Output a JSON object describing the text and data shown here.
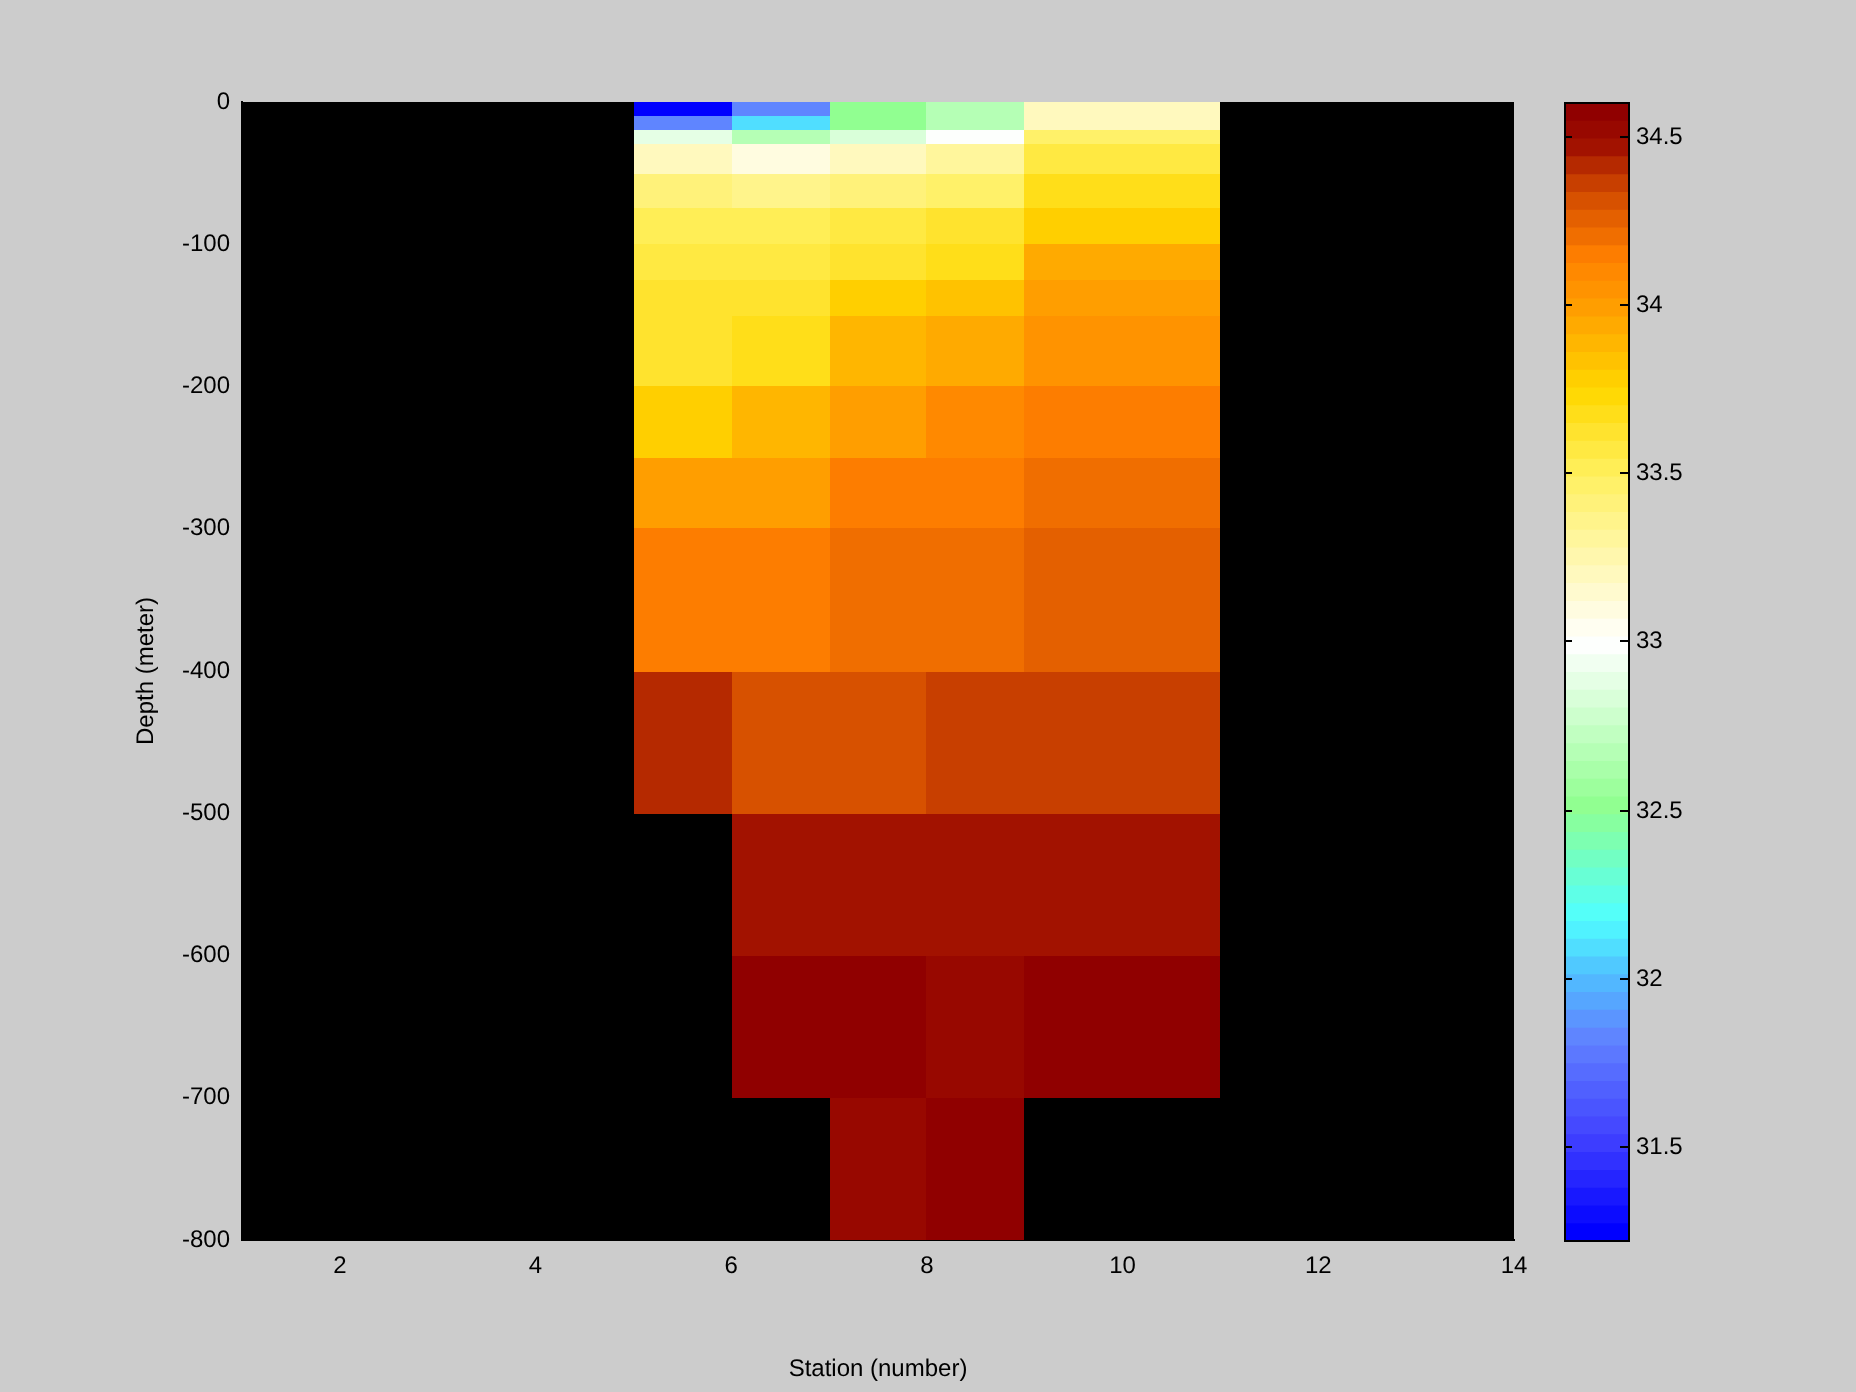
{
  "chart_data": {
    "type": "heatmap",
    "xlabel": "Station (number)",
    "ylabel": "Depth (meter)",
    "cells": [
      [
        null,
        null,
        null,
        null,
        31.25,
        31.85,
        32.5,
        32.65,
        33.2,
        33.2,
        null,
        null,
        null
      ],
      [
        null,
        null,
        null,
        null,
        31.25,
        31.85,
        32.5,
        32.65,
        33.2,
        33.2,
        null,
        null,
        null
      ],
      [
        null,
        null,
        null,
        null,
        31.85,
        32.1,
        32.5,
        32.65,
        33.2,
        33.2,
        null,
        null,
        null
      ],
      [
        null,
        null,
        null,
        null,
        31.85,
        32.1,
        32.5,
        32.65,
        33.2,
        33.2,
        null,
        null,
        null
      ],
      [
        null,
        null,
        null,
        null,
        32.9,
        32.65,
        32.85,
        33.0,
        33.45,
        33.45,
        null,
        null,
        null
      ],
      [
        null,
        null,
        null,
        null,
        32.9,
        32.65,
        32.85,
        33.0,
        33.45,
        33.45,
        null,
        null,
        null
      ],
      [
        null,
        null,
        null,
        null,
        33.2,
        33.1,
        33.2,
        33.3,
        33.55,
        33.55,
        null,
        null,
        null
      ],
      [
        null,
        null,
        null,
        null,
        33.2,
        33.1,
        33.2,
        33.3,
        33.55,
        33.55,
        null,
        null,
        null
      ],
      [
        null,
        null,
        null,
        null,
        33.2,
        33.1,
        33.2,
        33.3,
        33.55,
        33.55,
        null,
        null,
        null
      ],
      [
        null,
        null,
        null,
        null,
        33.2,
        33.1,
        33.2,
        33.3,
        33.55,
        33.55,
        null,
        null,
        null
      ],
      [
        null,
        null,
        null,
        null,
        33.4,
        33.35,
        33.4,
        33.45,
        33.7,
        33.7,
        null,
        null,
        null
      ],
      [
        null,
        null,
        null,
        null,
        33.4,
        33.35,
        33.4,
        33.45,
        33.7,
        33.7,
        null,
        null,
        null
      ],
      [
        null,
        null,
        null,
        null,
        33.4,
        33.35,
        33.4,
        33.45,
        33.7,
        33.7,
        null,
        null,
        null
      ],
      [
        null,
        null,
        null,
        null,
        33.4,
        33.35,
        33.4,
        33.45,
        33.7,
        33.7,
        null,
        null,
        null
      ],
      [
        null,
        null,
        null,
        null,
        33.4,
        33.35,
        33.4,
        33.45,
        33.7,
        33.7,
        null,
        null,
        null
      ],
      [
        null,
        null,
        null,
        null,
        33.5,
        33.5,
        33.55,
        33.6,
        33.8,
        33.8,
        null,
        null,
        null
      ],
      [
        null,
        null,
        null,
        null,
        33.5,
        33.5,
        33.55,
        33.6,
        33.8,
        33.8,
        null,
        null,
        null
      ],
      [
        null,
        null,
        null,
        null,
        33.5,
        33.5,
        33.55,
        33.6,
        33.8,
        33.8,
        null,
        null,
        null
      ],
      [
        null,
        null,
        null,
        null,
        33.5,
        33.5,
        33.55,
        33.6,
        33.8,
        33.8,
        null,
        null,
        null
      ],
      [
        null,
        null,
        null,
        null,
        33.5,
        33.5,
        33.55,
        33.6,
        33.8,
        33.8,
        null,
        null,
        null
      ],
      [
        null,
        null,
        null,
        null,
        33.55,
        33.55,
        33.6,
        33.7,
        33.95,
        33.95,
        null,
        null,
        null
      ],
      [
        null,
        null,
        null,
        null,
        33.55,
        33.55,
        33.6,
        33.7,
        33.95,
        33.95,
        null,
        null,
        null
      ],
      [
        null,
        null,
        null,
        null,
        33.55,
        33.55,
        33.6,
        33.7,
        33.95,
        33.95,
        null,
        null,
        null
      ],
      [
        null,
        null,
        null,
        null,
        33.55,
        33.55,
        33.6,
        33.7,
        33.95,
        33.95,
        null,
        null,
        null
      ],
      [
        null,
        null,
        null,
        null,
        33.55,
        33.55,
        33.6,
        33.7,
        33.95,
        33.95,
        null,
        null,
        null
      ],
      [
        null,
        null,
        null,
        null,
        33.6,
        33.6,
        33.8,
        33.85,
        34.0,
        34.0,
        null,
        null,
        null
      ],
      [
        null,
        null,
        null,
        null,
        33.6,
        33.6,
        33.8,
        33.85,
        34.0,
        34.0,
        null,
        null,
        null
      ],
      [
        null,
        null,
        null,
        null,
        33.6,
        33.6,
        33.8,
        33.85,
        34.0,
        34.0,
        null,
        null,
        null
      ],
      [
        null,
        null,
        null,
        null,
        33.6,
        33.6,
        33.8,
        33.85,
        34.0,
        34.0,
        null,
        null,
        null
      ],
      [
        null,
        null,
        null,
        null,
        33.6,
        33.6,
        33.8,
        33.85,
        34.0,
        34.0,
        null,
        null,
        null
      ],
      [
        null,
        null,
        null,
        null,
        33.6,
        33.7,
        33.9,
        33.95,
        34.05,
        34.05,
        null,
        null,
        null
      ],
      [
        null,
        null,
        null,
        null,
        33.6,
        33.7,
        33.9,
        33.95,
        34.05,
        34.05,
        null,
        null,
        null
      ],
      [
        null,
        null,
        null,
        null,
        33.6,
        33.7,
        33.9,
        33.95,
        34.05,
        34.05,
        null,
        null,
        null
      ],
      [
        null,
        null,
        null,
        null,
        33.6,
        33.7,
        33.9,
        33.95,
        34.05,
        34.05,
        null,
        null,
        null
      ],
      [
        null,
        null,
        null,
        null,
        33.6,
        33.7,
        33.9,
        33.95,
        34.05,
        34.05,
        null,
        null,
        null
      ],
      [
        null,
        null,
        null,
        null,
        33.6,
        33.7,
        33.9,
        33.95,
        34.05,
        34.05,
        null,
        null,
        null
      ],
      [
        null,
        null,
        null,
        null,
        33.6,
        33.7,
        33.9,
        33.95,
        34.05,
        34.05,
        null,
        null,
        null
      ],
      [
        null,
        null,
        null,
        null,
        33.6,
        33.7,
        33.9,
        33.95,
        34.05,
        34.05,
        null,
        null,
        null
      ],
      [
        null,
        null,
        null,
        null,
        33.6,
        33.7,
        33.9,
        33.95,
        34.05,
        34.05,
        null,
        null,
        null
      ],
      [
        null,
        null,
        null,
        null,
        33.6,
        33.7,
        33.9,
        33.95,
        34.05,
        34.05,
        null,
        null,
        null
      ],
      [
        null,
        null,
        null,
        null,
        33.8,
        33.9,
        34.0,
        34.1,
        34.15,
        34.15,
        null,
        null,
        null
      ],
      [
        null,
        null,
        null,
        null,
        33.8,
        33.9,
        34.0,
        34.1,
        34.15,
        34.15,
        null,
        null,
        null
      ],
      [
        null,
        null,
        null,
        null,
        33.8,
        33.9,
        34.0,
        34.1,
        34.15,
        34.15,
        null,
        null,
        null
      ],
      [
        null,
        null,
        null,
        null,
        33.8,
        33.9,
        34.0,
        34.1,
        34.15,
        34.15,
        null,
        null,
        null
      ],
      [
        null,
        null,
        null,
        null,
        33.8,
        33.9,
        34.0,
        34.1,
        34.15,
        34.15,
        null,
        null,
        null
      ],
      [
        null,
        null,
        null,
        null,
        33.8,
        33.9,
        34.0,
        34.1,
        34.15,
        34.15,
        null,
        null,
        null
      ],
      [
        null,
        null,
        null,
        null,
        33.8,
        33.9,
        34.0,
        34.1,
        34.15,
        34.15,
        null,
        null,
        null
      ],
      [
        null,
        null,
        null,
        null,
        33.8,
        33.9,
        34.0,
        34.1,
        34.15,
        34.15,
        null,
        null,
        null
      ],
      [
        null,
        null,
        null,
        null,
        33.8,
        33.9,
        34.0,
        34.1,
        34.15,
        34.15,
        null,
        null,
        null
      ],
      [
        null,
        null,
        null,
        null,
        33.8,
        33.9,
        34.0,
        34.1,
        34.15,
        34.15,
        null,
        null,
        null
      ],
      [
        null,
        null,
        null,
        null,
        34.0,
        34.0,
        34.15,
        34.15,
        34.2,
        34.2,
        null,
        null,
        null
      ],
      [
        null,
        null,
        null,
        null,
        34.0,
        34.0,
        34.15,
        34.15,
        34.2,
        34.2,
        null,
        null,
        null
      ],
      [
        null,
        null,
        null,
        null,
        34.0,
        34.0,
        34.15,
        34.15,
        34.2,
        34.2,
        null,
        null,
        null
      ],
      [
        null,
        null,
        null,
        null,
        34.0,
        34.0,
        34.15,
        34.15,
        34.2,
        34.2,
        null,
        null,
        null
      ],
      [
        null,
        null,
        null,
        null,
        34.0,
        34.0,
        34.15,
        34.15,
        34.2,
        34.2,
        null,
        null,
        null
      ],
      [
        null,
        null,
        null,
        null,
        34.0,
        34.0,
        34.15,
        34.15,
        34.2,
        34.2,
        null,
        null,
        null
      ],
      [
        null,
        null,
        null,
        null,
        34.0,
        34.0,
        34.15,
        34.15,
        34.2,
        34.2,
        null,
        null,
        null
      ],
      [
        null,
        null,
        null,
        null,
        34.0,
        34.0,
        34.15,
        34.15,
        34.2,
        34.2,
        null,
        null,
        null
      ],
      [
        null,
        null,
        null,
        null,
        34.0,
        34.0,
        34.15,
        34.15,
        34.2,
        34.2,
        null,
        null,
        null
      ],
      [
        null,
        null,
        null,
        null,
        34.0,
        34.0,
        34.15,
        34.15,
        34.2,
        34.2,
        null,
        null,
        null
      ],
      [
        null,
        null,
        null,
        null,
        34.15,
        34.15,
        34.2,
        34.2,
        34.25,
        34.25,
        null,
        null,
        null
      ],
      [
        null,
        null,
        null,
        null,
        34.15,
        34.15,
        34.2,
        34.2,
        34.25,
        34.25,
        null,
        null,
        null
      ],
      [
        null,
        null,
        null,
        null,
        34.15,
        34.15,
        34.2,
        34.2,
        34.25,
        34.25,
        null,
        null,
        null
      ],
      [
        null,
        null,
        null,
        null,
        34.15,
        34.15,
        34.2,
        34.2,
        34.25,
        34.25,
        null,
        null,
        null
      ],
      [
        null,
        null,
        null,
        null,
        34.15,
        34.15,
        34.2,
        34.2,
        34.25,
        34.25,
        null,
        null,
        null
      ],
      [
        null,
        null,
        null,
        null,
        34.15,
        34.15,
        34.2,
        34.2,
        34.25,
        34.25,
        null,
        null,
        null
      ],
      [
        null,
        null,
        null,
        null,
        34.15,
        34.15,
        34.2,
        34.2,
        34.25,
        34.25,
        null,
        null,
        null
      ],
      [
        null,
        null,
        null,
        null,
        34.15,
        34.15,
        34.2,
        34.2,
        34.25,
        34.25,
        null,
        null,
        null
      ],
      [
        null,
        null,
        null,
        null,
        34.15,
        34.15,
        34.2,
        34.2,
        34.25,
        34.25,
        null,
        null,
        null
      ],
      [
        null,
        null,
        null,
        null,
        34.15,
        34.15,
        34.2,
        34.2,
        34.25,
        34.25,
        null,
        null,
        null
      ],
      [
        null,
        null,
        null,
        null,
        34.15,
        34.15,
        34.2,
        34.2,
        34.25,
        34.25,
        null,
        null,
        null
      ],
      [
        null,
        null,
        null,
        null,
        34.15,
        34.15,
        34.2,
        34.2,
        34.25,
        34.25,
        null,
        null,
        null
      ],
      [
        null,
        null,
        null,
        null,
        34.15,
        34.15,
        34.2,
        34.2,
        34.25,
        34.25,
        null,
        null,
        null
      ],
      [
        null,
        null,
        null,
        null,
        34.15,
        34.15,
        34.2,
        34.2,
        34.25,
        34.25,
        null,
        null,
        null
      ],
      [
        null,
        null,
        null,
        null,
        34.15,
        34.15,
        34.2,
        34.2,
        34.25,
        34.25,
        null,
        null,
        null
      ],
      [
        null,
        null,
        null,
        null,
        34.15,
        34.15,
        34.2,
        34.2,
        34.25,
        34.25,
        null,
        null,
        null
      ],
      [
        null,
        null,
        null,
        null,
        34.15,
        34.15,
        34.2,
        34.2,
        34.25,
        34.25,
        null,
        null,
        null
      ],
      [
        null,
        null,
        null,
        null,
        34.15,
        34.15,
        34.2,
        34.2,
        34.25,
        34.25,
        null,
        null,
        null
      ],
      [
        null,
        null,
        null,
        null,
        34.15,
        34.15,
        34.2,
        34.2,
        34.25,
        34.25,
        null,
        null,
        null
      ],
      [
        null,
        null,
        null,
        null,
        34.15,
        34.15,
        34.2,
        34.2,
        34.25,
        34.25,
        null,
        null,
        null
      ],
      [
        null,
        null,
        null,
        null,
        34.4,
        34.3,
        34.3,
        34.35,
        34.35,
        34.35,
        null,
        null,
        null
      ],
      [
        null,
        null,
        null,
        null,
        34.4,
        34.3,
        34.3,
        34.35,
        34.35,
        34.35,
        null,
        null,
        null
      ],
      [
        null,
        null,
        null,
        null,
        34.4,
        34.3,
        34.3,
        34.35,
        34.35,
        34.35,
        null,
        null,
        null
      ],
      [
        null,
        null,
        null,
        null,
        34.4,
        34.3,
        34.3,
        34.35,
        34.35,
        34.35,
        null,
        null,
        null
      ],
      [
        null,
        null,
        null,
        null,
        34.4,
        34.3,
        34.3,
        34.35,
        34.35,
        34.35,
        null,
        null,
        null
      ],
      [
        null,
        null,
        null,
        null,
        34.4,
        34.3,
        34.3,
        34.35,
        34.35,
        34.35,
        null,
        null,
        null
      ],
      [
        null,
        null,
        null,
        null,
        34.4,
        34.3,
        34.3,
        34.35,
        34.35,
        34.35,
        null,
        null,
        null
      ],
      [
        null,
        null,
        null,
        null,
        34.4,
        34.3,
        34.3,
        34.35,
        34.35,
        34.35,
        null,
        null,
        null
      ],
      [
        null,
        null,
        null,
        null,
        34.4,
        34.3,
        34.3,
        34.35,
        34.35,
        34.35,
        null,
        null,
        null
      ],
      [
        null,
        null,
        null,
        null,
        34.4,
        34.3,
        34.3,
        34.35,
        34.35,
        34.35,
        null,
        null,
        null
      ],
      [
        null,
        null,
        null,
        null,
        34.4,
        34.3,
        34.3,
        34.35,
        34.35,
        34.35,
        null,
        null,
        null
      ],
      [
        null,
        null,
        null,
        null,
        34.4,
        34.3,
        34.3,
        34.35,
        34.35,
        34.35,
        null,
        null,
        null
      ],
      [
        null,
        null,
        null,
        null,
        34.4,
        34.3,
        34.3,
        34.35,
        34.35,
        34.35,
        null,
        null,
        null
      ],
      [
        null,
        null,
        null,
        null,
        34.4,
        34.3,
        34.3,
        34.35,
        34.35,
        34.35,
        null,
        null,
        null
      ],
      [
        null,
        null,
        null,
        null,
        34.4,
        34.3,
        34.3,
        34.35,
        34.35,
        34.35,
        null,
        null,
        null
      ],
      [
        null,
        null,
        null,
        null,
        34.4,
        34.3,
        34.3,
        34.35,
        34.35,
        34.35,
        null,
        null,
        null
      ],
      [
        null,
        null,
        null,
        null,
        34.4,
        34.3,
        34.3,
        34.35,
        34.35,
        34.35,
        null,
        null,
        null
      ],
      [
        null,
        null,
        null,
        null,
        34.4,
        34.3,
        34.3,
        34.35,
        34.35,
        34.35,
        null,
        null,
        null
      ],
      [
        null,
        null,
        null,
        null,
        34.4,
        34.3,
        34.3,
        34.35,
        34.35,
        34.35,
        null,
        null,
        null
      ],
      [
        null,
        null,
        null,
        null,
        34.4,
        34.3,
        34.3,
        34.35,
        34.35,
        34.35,
        null,
        null,
        null
      ],
      [
        null,
        null,
        null,
        null,
        null,
        34.45,
        34.45,
        34.45,
        34.45,
        34.45,
        null,
        null,
        null
      ],
      [
        null,
        null,
        null,
        null,
        null,
        34.45,
        34.45,
        34.45,
        34.45,
        34.45,
        null,
        null,
        null
      ],
      [
        null,
        null,
        null,
        null,
        null,
        34.45,
        34.45,
        34.45,
        34.45,
        34.45,
        null,
        null,
        null
      ],
      [
        null,
        null,
        null,
        null,
        null,
        34.45,
        34.45,
        34.45,
        34.45,
        34.45,
        null,
        null,
        null
      ],
      [
        null,
        null,
        null,
        null,
        null,
        34.45,
        34.45,
        34.45,
        34.45,
        34.45,
        null,
        null,
        null
      ],
      [
        null,
        null,
        null,
        null,
        null,
        34.45,
        34.45,
        34.45,
        34.45,
        34.45,
        null,
        null,
        null
      ],
      [
        null,
        null,
        null,
        null,
        null,
        34.45,
        34.45,
        34.45,
        34.45,
        34.45,
        null,
        null,
        null
      ],
      [
        null,
        null,
        null,
        null,
        null,
        34.45,
        34.45,
        34.45,
        34.45,
        34.45,
        null,
        null,
        null
      ],
      [
        null,
        null,
        null,
        null,
        null,
        34.45,
        34.45,
        34.45,
        34.45,
        34.45,
        null,
        null,
        null
      ],
      [
        null,
        null,
        null,
        null,
        null,
        34.45,
        34.45,
        34.45,
        34.45,
        34.45,
        null,
        null,
        null
      ],
      [
        null,
        null,
        null,
        null,
        null,
        34.45,
        34.45,
        34.45,
        34.45,
        34.45,
        null,
        null,
        null
      ],
      [
        null,
        null,
        null,
        null,
        null,
        34.45,
        34.45,
        34.45,
        34.45,
        34.45,
        null,
        null,
        null
      ],
      [
        null,
        null,
        null,
        null,
        null,
        34.45,
        34.45,
        34.45,
        34.45,
        34.45,
        null,
        null,
        null
      ],
      [
        null,
        null,
        null,
        null,
        null,
        34.45,
        34.45,
        34.45,
        34.45,
        34.45,
        null,
        null,
        null
      ],
      [
        null,
        null,
        null,
        null,
        null,
        34.45,
        34.45,
        34.45,
        34.45,
        34.45,
        null,
        null,
        null
      ],
      [
        null,
        null,
        null,
        null,
        null,
        34.45,
        34.45,
        34.45,
        34.45,
        34.45,
        null,
        null,
        null
      ],
      [
        null,
        null,
        null,
        null,
        null,
        34.45,
        34.45,
        34.45,
        34.45,
        34.45,
        null,
        null,
        null
      ],
      [
        null,
        null,
        null,
        null,
        null,
        34.45,
        34.45,
        34.45,
        34.45,
        34.45,
        null,
        null,
        null
      ],
      [
        null,
        null,
        null,
        null,
        null,
        34.45,
        34.45,
        34.45,
        34.45,
        34.45,
        null,
        null,
        null
      ],
      [
        null,
        null,
        null,
        null,
        null,
        34.45,
        34.45,
        34.45,
        34.45,
        34.45,
        null,
        null,
        null
      ],
      [
        null,
        null,
        null,
        null,
        null,
        34.55,
        34.55,
        34.5,
        34.55,
        34.55,
        null,
        null,
        null
      ],
      [
        null,
        null,
        null,
        null,
        null,
        34.55,
        34.55,
        34.5,
        34.55,
        34.55,
        null,
        null,
        null
      ],
      [
        null,
        null,
        null,
        null,
        null,
        34.55,
        34.55,
        34.5,
        34.55,
        34.55,
        null,
        null,
        null
      ],
      [
        null,
        null,
        null,
        null,
        null,
        34.55,
        34.55,
        34.5,
        34.55,
        34.55,
        null,
        null,
        null
      ],
      [
        null,
        null,
        null,
        null,
        null,
        34.55,
        34.55,
        34.5,
        34.55,
        34.55,
        null,
        null,
        null
      ],
      [
        null,
        null,
        null,
        null,
        null,
        34.55,
        34.55,
        34.5,
        34.55,
        34.55,
        null,
        null,
        null
      ],
      [
        null,
        null,
        null,
        null,
        null,
        34.55,
        34.55,
        34.5,
        34.55,
        34.55,
        null,
        null,
        null
      ],
      [
        null,
        null,
        null,
        null,
        null,
        34.55,
        34.55,
        34.5,
        34.55,
        34.55,
        null,
        null,
        null
      ],
      [
        null,
        null,
        null,
        null,
        null,
        34.55,
        34.55,
        34.5,
        34.55,
        34.55,
        null,
        null,
        null
      ],
      [
        null,
        null,
        null,
        null,
        null,
        34.55,
        34.55,
        34.5,
        34.55,
        34.55,
        null,
        null,
        null
      ],
      [
        null,
        null,
        null,
        null,
        null,
        34.55,
        34.55,
        34.5,
        34.55,
        34.55,
        null,
        null,
        null
      ],
      [
        null,
        null,
        null,
        null,
        null,
        34.55,
        34.55,
        34.5,
        34.55,
        34.55,
        null,
        null,
        null
      ],
      [
        null,
        null,
        null,
        null,
        null,
        34.55,
        34.55,
        34.5,
        34.55,
        34.55,
        null,
        null,
        null
      ],
      [
        null,
        null,
        null,
        null,
        null,
        34.55,
        34.55,
        34.5,
        34.55,
        34.55,
        null,
        null,
        null
      ],
      [
        null,
        null,
        null,
        null,
        null,
        34.55,
        34.55,
        34.5,
        34.55,
        34.55,
        null,
        null,
        null
      ],
      [
        null,
        null,
        null,
        null,
        null,
        34.55,
        34.55,
        34.5,
        34.55,
        34.55,
        null,
        null,
        null
      ],
      [
        null,
        null,
        null,
        null,
        null,
        34.55,
        34.55,
        34.5,
        34.55,
        34.55,
        null,
        null,
        null
      ],
      [
        null,
        null,
        null,
        null,
        null,
        34.55,
        34.55,
        34.5,
        34.55,
        34.55,
        null,
        null,
        null
      ],
      [
        null,
        null,
        null,
        null,
        null,
        34.55,
        34.55,
        34.5,
        34.55,
        34.55,
        null,
        null,
        null
      ],
      [
        null,
        null,
        null,
        null,
        null,
        34.55,
        34.55,
        34.5,
        34.55,
        34.55,
        null,
        null,
        null
      ],
      [
        null,
        null,
        null,
        null,
        null,
        null,
        34.5,
        34.55,
        null,
        null,
        null,
        null,
        null
      ],
      [
        null,
        null,
        null,
        null,
        null,
        null,
        34.5,
        34.55,
        null,
        null,
        null,
        null,
        null
      ],
      [
        null,
        null,
        null,
        null,
        null,
        null,
        34.5,
        34.55,
        null,
        null,
        null,
        null,
        null
      ],
      [
        null,
        null,
        null,
        null,
        null,
        null,
        34.5,
        34.55,
        null,
        null,
        null,
        null,
        null
      ],
      [
        null,
        null,
        null,
        null,
        null,
        null,
        34.5,
        34.55,
        null,
        null,
        null,
        null,
        null
      ],
      [
        null,
        null,
        null,
        null,
        null,
        null,
        34.5,
        34.55,
        null,
        null,
        null,
        null,
        null
      ],
      [
        null,
        null,
        null,
        null,
        null,
        null,
        34.5,
        34.55,
        null,
        null,
        null,
        null,
        null
      ],
      [
        null,
        null,
        null,
        null,
        null,
        null,
        34.5,
        34.55,
        null,
        null,
        null,
        null,
        null
      ],
      [
        null,
        null,
        null,
        null,
        null,
        null,
        34.5,
        34.55,
        null,
        null,
        null,
        null,
        null
      ],
      [
        null,
        null,
        null,
        null,
        null,
        null,
        34.5,
        34.55,
        null,
        null,
        null,
        null,
        null
      ],
      [
        null,
        null,
        null,
        null,
        null,
        null,
        34.5,
        34.55,
        null,
        null,
        null,
        null,
        null
      ],
      [
        null,
        null,
        null,
        null,
        null,
        null,
        34.5,
        34.55,
        null,
        null,
        null,
        null,
        null
      ],
      [
        null,
        null,
        null,
        null,
        null,
        null,
        34.5,
        34.55,
        null,
        null,
        null,
        null,
        null
      ],
      [
        null,
        null,
        null,
        null,
        null,
        null,
        34.5,
        34.55,
        null,
        null,
        null,
        null,
        null
      ],
      [
        null,
        null,
        null,
        null,
        null,
        null,
        34.5,
        34.55,
        null,
        null,
        null,
        null,
        null
      ],
      [
        null,
        null,
        null,
        null,
        null,
        null,
        34.5,
        34.55,
        null,
        null,
        null,
        null,
        null
      ],
      [
        null,
        null,
        null,
        null,
        null,
        null,
        34.5,
        34.55,
        null,
        null,
        null,
        null,
        null
      ],
      [
        null,
        null,
        null,
        null,
        null,
        null,
        34.5,
        34.55,
        null,
        null,
        null,
        null,
        null
      ],
      [
        null,
        null,
        null,
        null,
        null,
        null,
        34.5,
        34.55,
        null,
        null,
        null,
        null,
        null
      ],
      [
        null,
        null,
        null,
        null,
        null,
        null,
        34.5,
        34.55,
        null,
        null,
        null,
        null,
        null
      ]
    ],
    "xlim": [
      1,
      14
    ],
    "xticks": [
      2,
      4,
      6,
      8,
      10,
      12,
      14
    ],
    "ylim": [
      -800,
      0
    ],
    "yticks": [
      -800,
      -700,
      -600,
      -500,
      -400,
      -300,
      -200,
      -100,
      0
    ],
    "clim": [
      31.22,
      34.6
    ],
    "cticks": [
      31.5,
      32,
      32.5,
      33,
      33.5,
      34,
      34.5
    ]
  }
}
